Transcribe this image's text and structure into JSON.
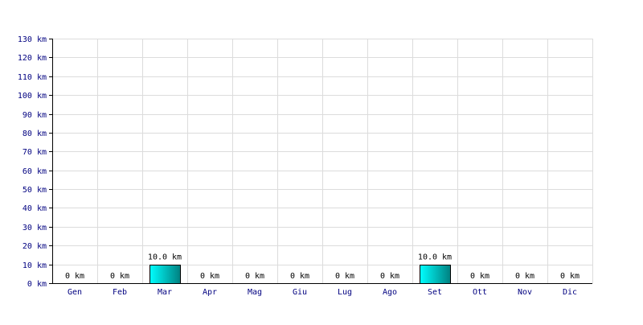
{
  "chart_data": {
    "type": "bar",
    "categories": [
      "Gen",
      "Feb",
      "Mar",
      "Apr",
      "Mag",
      "Giu",
      "Lug",
      "Ago",
      "Set",
      "Ott",
      "Nov",
      "Dic"
    ],
    "values": [
      0,
      0,
      10.0,
      0,
      0,
      0,
      0,
      0,
      10.0,
      0,
      0,
      0
    ],
    "data_labels": [
      "0 km",
      "0 km",
      "10.0 km",
      "0 km",
      "0 km",
      "0 km",
      "0 km",
      "0 km",
      "10.0 km",
      "0 km",
      "0 km",
      "0 km"
    ],
    "y_ticks": [
      0,
      10,
      20,
      30,
      40,
      50,
      60,
      70,
      80,
      90,
      100,
      110,
      120,
      130
    ],
    "y_tick_labels": [
      "0 km",
      "10 km",
      "20 km",
      "30 km",
      "40 km",
      "50 km",
      "60 km",
      "70 km",
      "80 km",
      "90 km",
      "100 km",
      "110 km",
      "120 km",
      "130 km"
    ],
    "ylim": [
      0,
      130
    ],
    "grid": true,
    "title": "",
    "xlabel": "",
    "ylabel": "",
    "colors": {
      "bar_light": "#00ffff",
      "bar_dark": "#008080",
      "grid": "#dcdcdc",
      "tick_text": "#000080",
      "label_text": "#000000"
    }
  }
}
